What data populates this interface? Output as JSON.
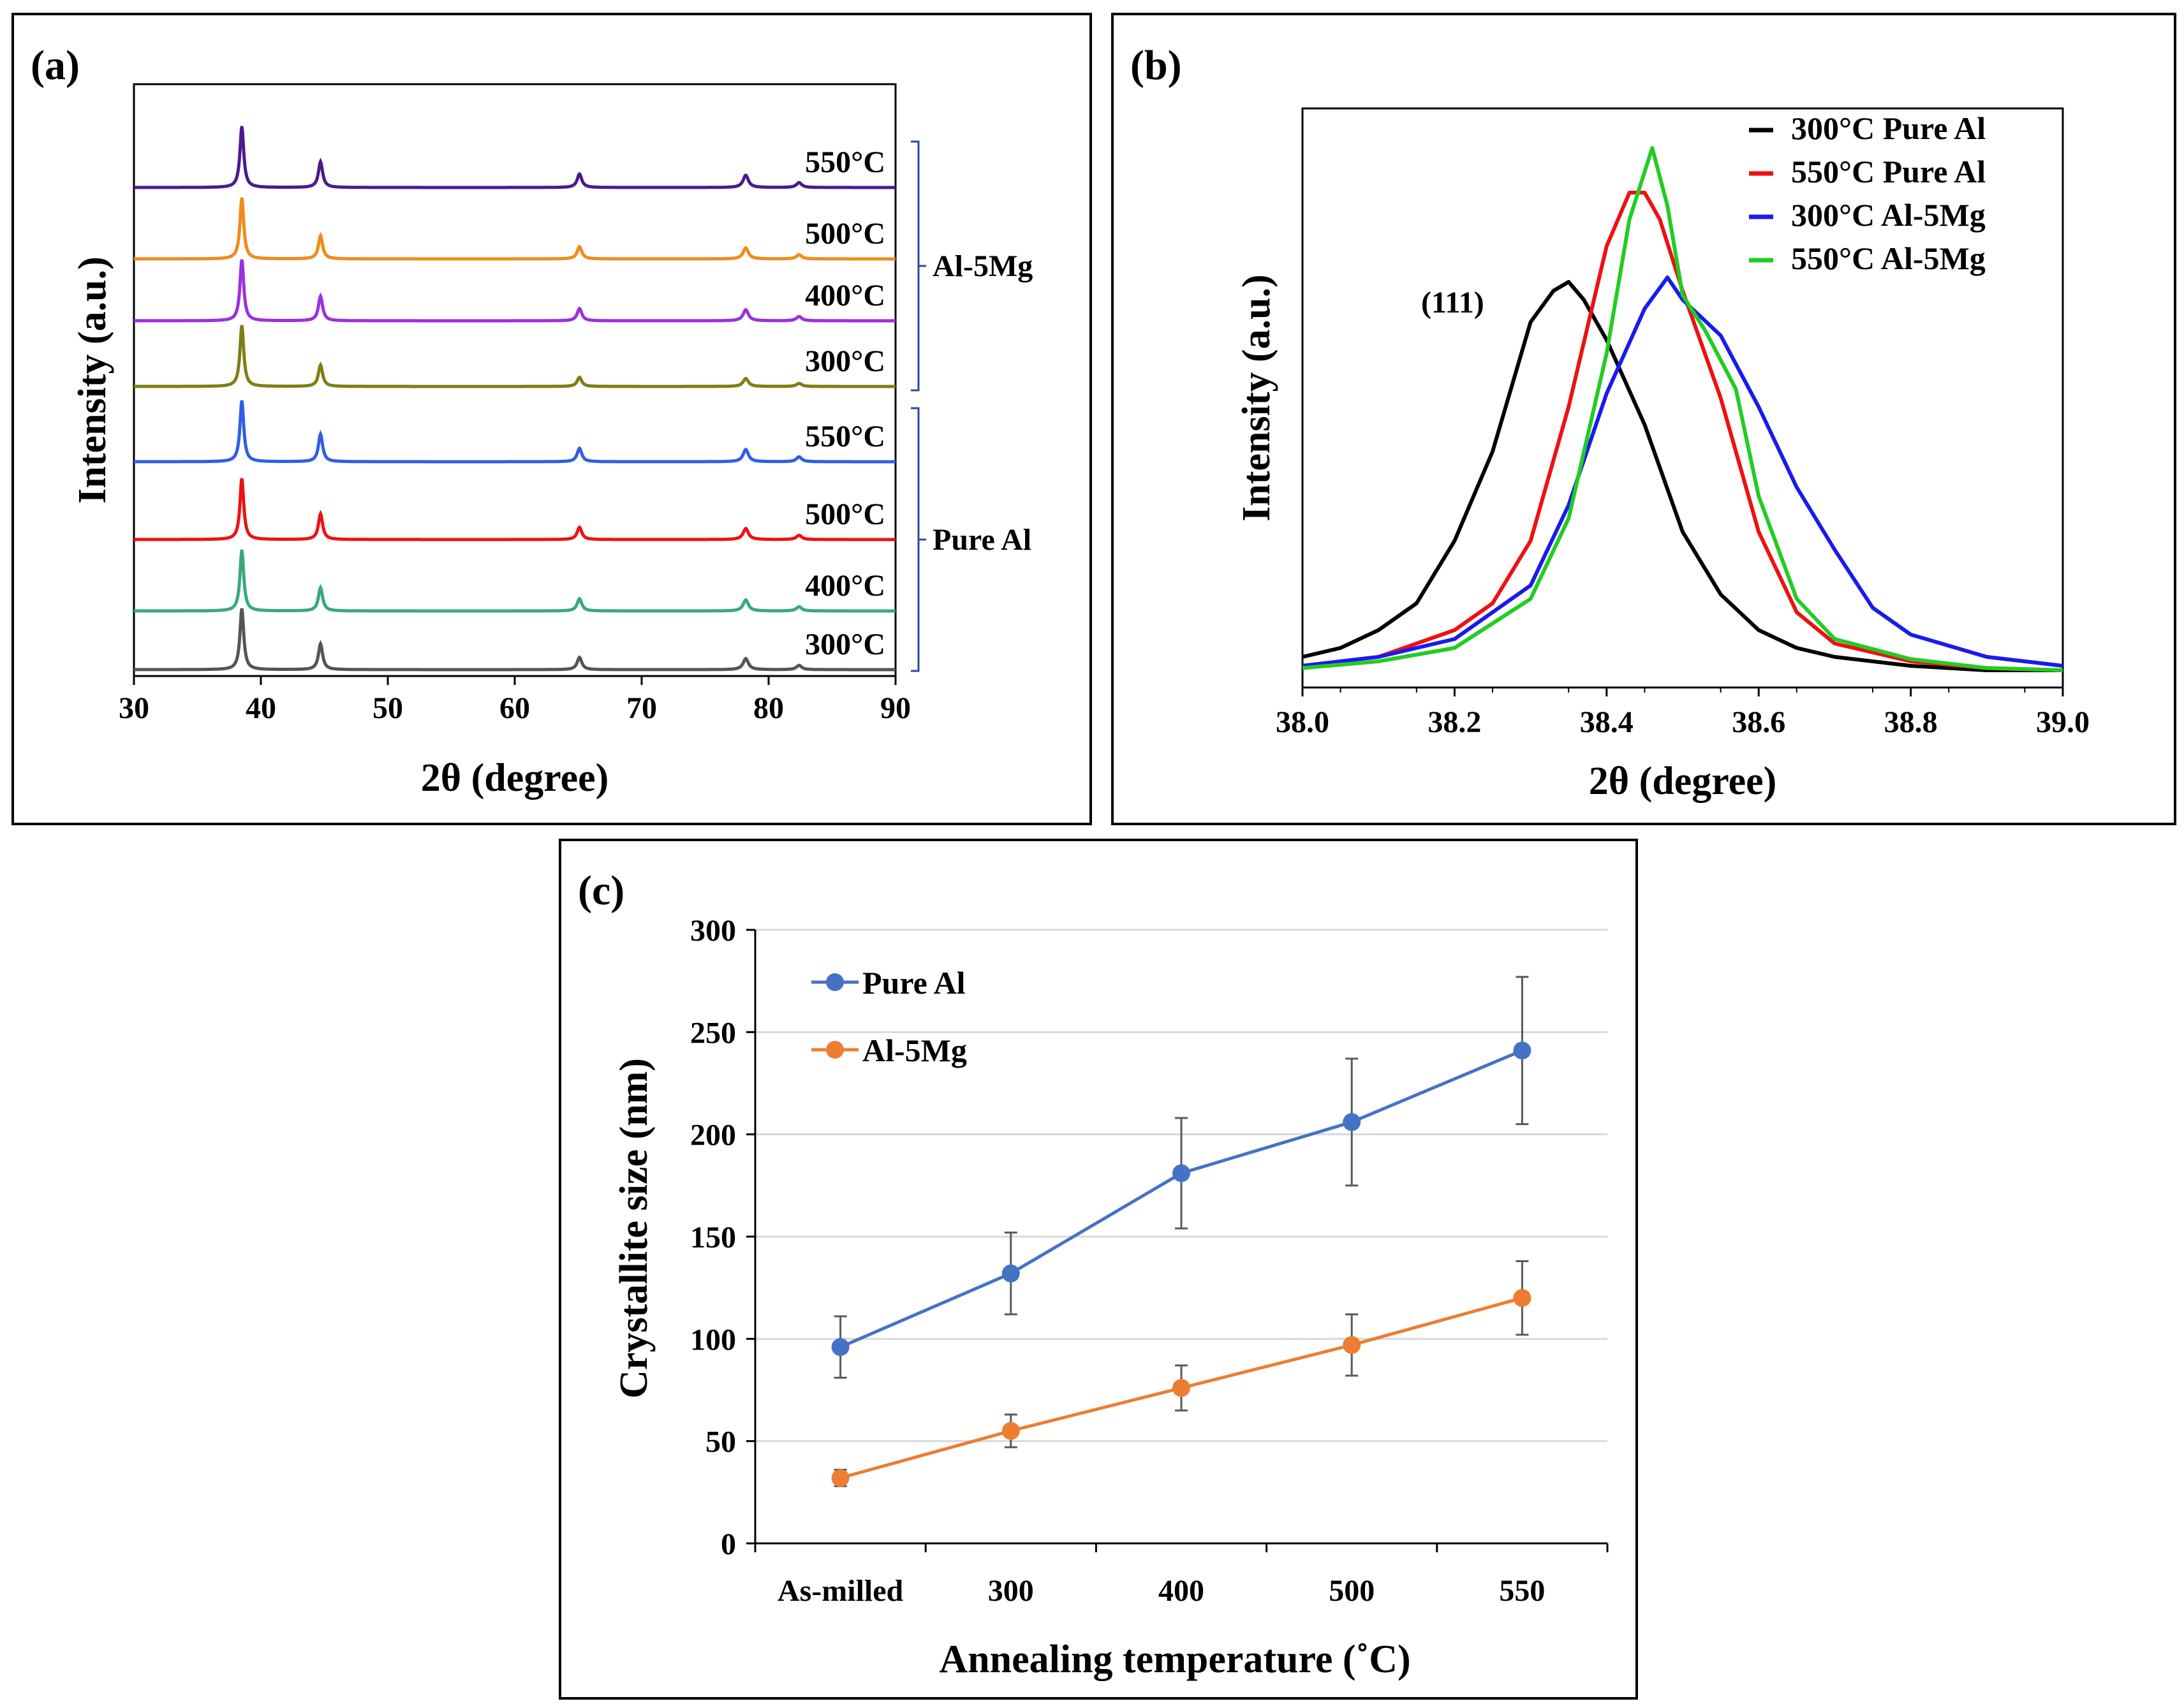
{
  "chart_data": [
    {
      "panel": "(a)",
      "type": "line",
      "xlabel": "2θ (degree)",
      "ylabel": "Intensity (a.u.)",
      "xlim": [
        30,
        90
      ],
      "xticks": [
        "30",
        "40",
        "50",
        "60",
        "70",
        "80",
        "90"
      ],
      "peaks_2theta": [
        38.5,
        44.7,
        65.1,
        78.2,
        82.4
      ],
      "groups": [
        {
          "name": "Al-5Mg",
          "members": [
            "550°C",
            "500°C",
            "400°C",
            "300°C"
          ]
        },
        {
          "name": "Pure Al",
          "members": [
            "550°C",
            "500°C",
            "400°C",
            "300°C"
          ]
        }
      ],
      "series": [
        {
          "name": "550°C",
          "group": "Al-5Mg",
          "color": "#4b1a8e",
          "peak_heights": [
            1.0,
            0.42,
            0.22,
            0.2,
            0.08
          ]
        },
        {
          "name": "500°C",
          "group": "Al-5Mg",
          "color": "#f28a1b",
          "peak_heights": [
            1.0,
            0.38,
            0.2,
            0.18,
            0.07
          ]
        },
        {
          "name": "400°C",
          "group": "Al-5Mg",
          "color": "#9b30e0",
          "peak_heights": [
            1.0,
            0.4,
            0.2,
            0.18,
            0.07
          ]
        },
        {
          "name": "300°C",
          "group": "Al-5Mg",
          "color": "#7f7f14",
          "peak_heights": [
            1.0,
            0.35,
            0.15,
            0.13,
            0.05
          ]
        },
        {
          "name": "550°C",
          "group": "Pure Al",
          "color": "#2f5ee6",
          "peak_heights": [
            1.0,
            0.45,
            0.22,
            0.2,
            0.08
          ]
        },
        {
          "name": "500°C",
          "group": "Pure Al",
          "color": "#ee1111",
          "peak_heights": [
            1.0,
            0.42,
            0.2,
            0.18,
            0.07
          ]
        },
        {
          "name": "400°C",
          "group": "Pure Al",
          "color": "#3aa87a",
          "peak_heights": [
            1.0,
            0.38,
            0.2,
            0.18,
            0.07
          ]
        },
        {
          "name": "300°C",
          "group": "Pure Al",
          "color": "#555555",
          "peak_heights": [
            1.0,
            0.42,
            0.2,
            0.18,
            0.07
          ]
        }
      ]
    },
    {
      "panel": "(b)",
      "type": "line",
      "xlabel": "2θ (degree)",
      "ylabel": "Intensity (a.u.)",
      "xlim": [
        38.0,
        39.0
      ],
      "xticks": [
        "38.0",
        "38.2",
        "38.4",
        "38.6",
        "38.8",
        "39.0"
      ],
      "ylim": [
        0,
        1.0
      ],
      "annotation": "(111)",
      "legend_position": "top-right",
      "series": [
        {
          "name": "300°C Pure Al",
          "color": "#000000",
          "x": [
            38.0,
            38.05,
            38.1,
            38.15,
            38.2,
            38.25,
            38.3,
            38.33,
            38.35,
            38.37,
            38.4,
            38.45,
            38.5,
            38.55,
            38.6,
            38.65,
            38.7,
            38.8,
            38.9,
            39.0
          ],
          "y": [
            0.04,
            0.06,
            0.1,
            0.16,
            0.3,
            0.5,
            0.79,
            0.86,
            0.88,
            0.84,
            0.75,
            0.56,
            0.32,
            0.18,
            0.1,
            0.06,
            0.04,
            0.02,
            0.01,
            0.01
          ]
        },
        {
          "name": "550°C Pure Al",
          "color": "#ee1111",
          "x": [
            38.0,
            38.1,
            38.2,
            38.25,
            38.3,
            38.35,
            38.4,
            38.43,
            38.45,
            38.47,
            38.5,
            38.55,
            38.6,
            38.65,
            38.7,
            38.8,
            38.9,
            39.0
          ],
          "y": [
            0.02,
            0.04,
            0.1,
            0.16,
            0.3,
            0.6,
            0.96,
            1.08,
            1.08,
            1.02,
            0.86,
            0.62,
            0.32,
            0.14,
            0.07,
            0.03,
            0.015,
            0.01
          ]
        },
        {
          "name": "300°C Al-5Mg",
          "color": "#1a1aee",
          "x": [
            38.0,
            38.1,
            38.2,
            38.3,
            38.35,
            38.4,
            38.45,
            38.48,
            38.5,
            38.55,
            38.6,
            38.65,
            38.7,
            38.75,
            38.8,
            38.9,
            39.0
          ],
          "y": [
            0.02,
            0.04,
            0.08,
            0.2,
            0.38,
            0.63,
            0.82,
            0.89,
            0.84,
            0.76,
            0.6,
            0.42,
            0.28,
            0.15,
            0.09,
            0.04,
            0.02
          ]
        },
        {
          "name": "550°C Al-5Mg",
          "color": "#22cc22",
          "x": [
            38.0,
            38.1,
            38.2,
            38.3,
            38.35,
            38.4,
            38.43,
            38.46,
            38.48,
            38.5,
            38.53,
            38.57,
            38.6,
            38.65,
            38.7,
            38.8,
            38.9,
            39.0
          ],
          "y": [
            0.015,
            0.03,
            0.06,
            0.17,
            0.35,
            0.72,
            1.02,
            1.18,
            1.05,
            0.85,
            0.77,
            0.64,
            0.4,
            0.17,
            0.08,
            0.035,
            0.015,
            0.01
          ]
        }
      ]
    },
    {
      "panel": "(c)",
      "type": "line",
      "xlabel": "Annealing temperature (˚C)",
      "ylabel": "Crystallite size (nm)",
      "categories": [
        "As-milled",
        "300",
        "400",
        "500",
        "550"
      ],
      "ylim": [
        0,
        300
      ],
      "yticks": [
        "0",
        "50",
        "100",
        "150",
        "200",
        "250",
        "300"
      ],
      "grid": true,
      "legend_position": "top-left",
      "series": [
        {
          "name": "Pure Al",
          "color": "#4472c4",
          "values": [
            96,
            132,
            181,
            206,
            241
          ],
          "errors": [
            15,
            20,
            27,
            31,
            36
          ]
        },
        {
          "name": "Al-5Mg",
          "color": "#ed7d31",
          "values": [
            32,
            55,
            76,
            97,
            120
          ],
          "errors": [
            4,
            8,
            11,
            15,
            18
          ]
        }
      ]
    }
  ]
}
